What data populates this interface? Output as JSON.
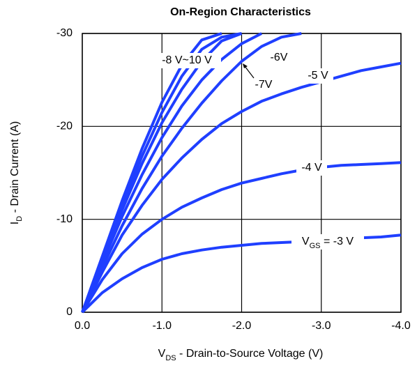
{
  "chart_data": {
    "type": "line",
    "title": "On-Region Characteristics",
    "xlabel": [
      "V",
      "DS",
      " - Drain-to-Source Voltage (V)"
    ],
    "ylabel": [
      "I",
      "D",
      " - Drain Current (A)"
    ],
    "x": [
      0,
      -0.25,
      -0.5,
      -0.75,
      -1.0,
      -1.25,
      -1.5,
      -1.75,
      -2.0,
      -2.25,
      -2.5,
      -2.75,
      -3.0,
      -3.25,
      -3.5,
      -3.75,
      -4.0
    ],
    "xlim": [
      0,
      -4
    ],
    "xticks": [
      {
        "value": 0,
        "label": "0.0"
      },
      {
        "value": -1,
        "label": "-1.0"
      },
      {
        "value": -2,
        "label": "-2.0"
      },
      {
        "value": -3,
        "label": "-3.0"
      },
      {
        "value": -4,
        "label": "-4.0"
      }
    ],
    "ylim": [
      0,
      -30
    ],
    "yticks": [
      0,
      -10,
      -20,
      -30
    ],
    "grid": true,
    "series": [
      {
        "name": [
          "V",
          "GS",
          " = -3 V"
        ],
        "color": "#1f3fff",
        "values": [
          0,
          -2.1,
          -3.6,
          -4.8,
          -5.7,
          -6.3,
          -6.7,
          -7.0,
          -7.2,
          -7.4,
          -7.5,
          -7.6,
          -7.7,
          -7.9,
          -8.0,
          -8.1,
          -8.3
        ]
      },
      {
        "name": [
          "-4 V"
        ],
        "color": "#1f3fff",
        "values": [
          0,
          -3.5,
          -6.3,
          -8.4,
          -10.0,
          -11.3,
          -12.3,
          -13.2,
          -13.9,
          -14.4,
          -14.9,
          -15.3,
          -15.6,
          -15.8,
          -15.9,
          -16.0,
          -16.1
        ]
      },
      {
        "name": [
          "-5 V"
        ],
        "color": "#1f3fff",
        "values": [
          0,
          -4.3,
          -8.3,
          -11.5,
          -14.3,
          -16.6,
          -18.6,
          -20.3,
          -21.6,
          -22.7,
          -23.5,
          -24.2,
          -24.8,
          -25.4,
          -26.0,
          -26.4,
          -26.8
        ]
      },
      {
        "name": [
          "-6V"
        ],
        "color": "#1f3fff",
        "values": [
          0,
          -4.8,
          -9.3,
          -13.3,
          -16.8,
          -19.8,
          -22.5,
          -24.9,
          -27.0,
          -28.6,
          -29.6,
          -30,
          null,
          null,
          null,
          null,
          null
        ]
      },
      {
        "name": [
          "-7V"
        ],
        "color": "#1f3fff",
        "values": [
          0,
          -5.3,
          -10.3,
          -14.8,
          -18.8,
          -22.2,
          -25.0,
          -27.2,
          -28.9,
          -30,
          null,
          null,
          null,
          null,
          null,
          null,
          null
        ]
      },
      {
        "name": [
          "-8 V~10 V"
        ],
        "color": "#1f3fff",
        "values": [
          0,
          -5.6,
          -11.0,
          -16.0,
          -20.4,
          -24.0,
          -27.0,
          -29.2,
          -30,
          null,
          null,
          null,
          null,
          null,
          null,
          null,
          null
        ]
      },
      {
        "color": "#1f3fff",
        "values": [
          0,
          -5.8,
          -11.5,
          -16.8,
          -21.5,
          -25.4,
          -28.3,
          -29.6,
          -30,
          null,
          null,
          null,
          null,
          null,
          null,
          null,
          null
        ]
      },
      {
        "color": "#1f3fff",
        "values": [
          0,
          -6.0,
          -12.0,
          -17.6,
          -22.6,
          -26.6,
          -29.3,
          -30,
          null,
          null,
          null,
          null,
          null,
          null,
          null,
          null,
          null
        ]
      }
    ]
  }
}
